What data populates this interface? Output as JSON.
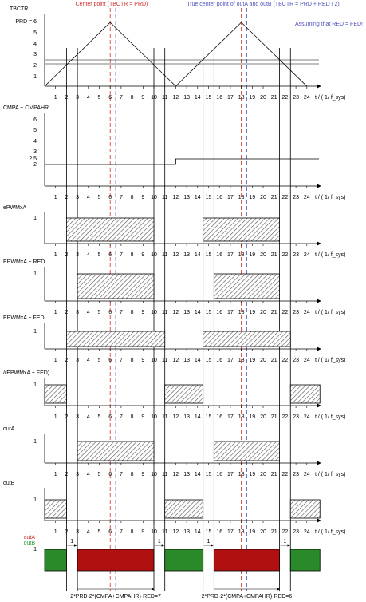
{
  "annotations": {
    "center_point": "Center point (TBCTR = PRD)",
    "true_center": "True center point of outA and outB (TBCTR = PRD + RED / 2)",
    "assumption": "Assuming that RED = FED!"
  },
  "time_ticks": [
    "1",
    "2",
    "3",
    "4",
    "5",
    "6",
    "7",
    "8",
    "9",
    "10",
    "11",
    "12",
    "13",
    "14",
    "15",
    "16",
    "17",
    "18",
    "19",
    "20",
    "21",
    "22",
    "23",
    "24"
  ],
  "time_axis_label": "t / ( 1/ f_sys)",
  "panels": [
    {
      "label": "TBCTR",
      "y_labels": [
        "PRD = 6",
        "5",
        "4",
        "3",
        "2",
        "1"
      ]
    },
    {
      "label": "CMPA + CMPAHR",
      "y_labels": [
        "6",
        "5",
        "4",
        "3",
        "2.5",
        "2"
      ]
    },
    {
      "label": "ePWMxA",
      "y_labels": [
        "1"
      ]
    },
    {
      "label": "EPWMxA + RED",
      "y_labels": [
        "1"
      ]
    },
    {
      "label": "EPWMxA + FED",
      "y_labels": [
        "1"
      ]
    },
    {
      "label": "/(EPWMxA + FED)",
      "y_labels": [
        "1"
      ]
    },
    {
      "label": "outA",
      "y_labels": [
        "1"
      ]
    },
    {
      "label": "outB",
      "y_labels": [
        "1"
      ]
    }
  ],
  "bottom": {
    "legend": [
      "outA",
      "outB"
    ],
    "level": "1",
    "gap_labels": [
      "1",
      "1",
      "1",
      "1"
    ],
    "formulas": [
      "2*PRD-2*(CMPA+CMPAHR)-RED=7",
      "2*PRD-2*(CMPA+CMPAHR)-RED=6"
    ]
  }
}
